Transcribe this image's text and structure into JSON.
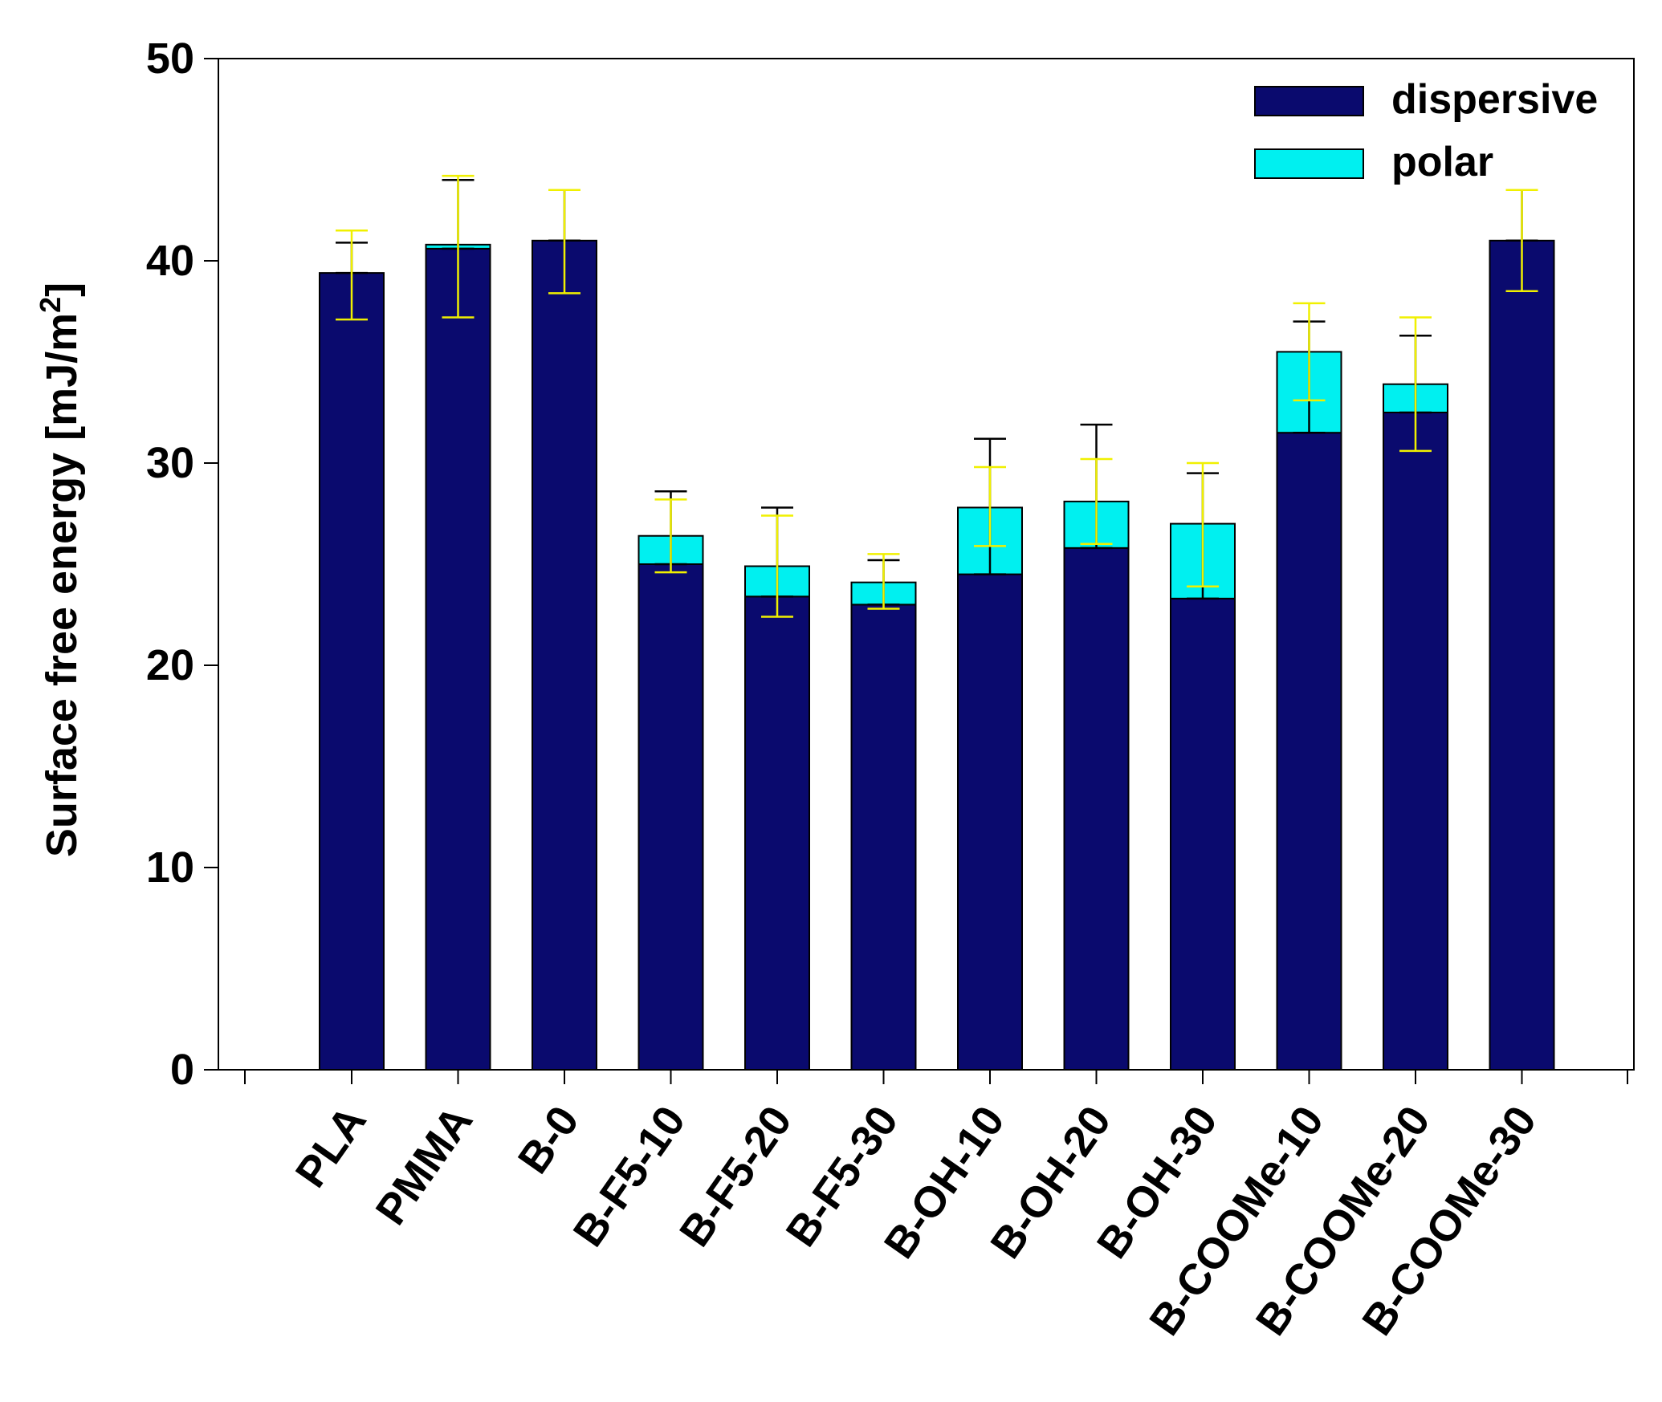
{
  "chart_data": {
    "type": "bar",
    "stacked": true,
    "title": "",
    "xlabel": "",
    "ylabel": "Surface free energy [mJ/m",
    "ylabel_superscript": "2",
    "ylabel_close": "]",
    "ylim": [
      0,
      50
    ],
    "yticks": [
      0,
      10,
      20,
      30,
      40,
      50
    ],
    "grid": false,
    "legend_position": "top-right",
    "categories": [
      "PLA",
      "PMMA",
      "B-0",
      "B-F5-10",
      "B-F5-20",
      "B-F5-30",
      "B-OH-10",
      "B-OH-20",
      "B-OH-30",
      "B-COOMe-10",
      "B-COOMe-20",
      "B-COOMe-30"
    ],
    "series": [
      {
        "name": "dispersive",
        "color": "#0a0a6e",
        "values": [
          39.4,
          40.6,
          41.0,
          25.0,
          23.4,
          23.0,
          24.5,
          25.8,
          23.3,
          31.5,
          32.5,
          41.0
        ],
        "error_color": "#000000",
        "errors": [
          1.5,
          3.4,
          2.5,
          3.6,
          4.4,
          2.2,
          6.7,
          6.1,
          6.2,
          5.5,
          3.8,
          2.5
        ]
      },
      {
        "name": "polar",
        "color": "#00f0f0",
        "values": [
          0.0,
          0.2,
          0.0,
          1.4,
          1.5,
          1.1,
          3.3,
          2.3,
          3.7,
          4.0,
          1.4,
          0.0
        ],
        "error_color": "#f0f000",
        "errors": [
          2.1,
          3.4,
          2.5,
          1.8,
          2.5,
          1.4,
          2.0,
          2.1,
          3.0,
          2.4,
          3.3,
          2.5
        ],
        "lower_errors": [
          2.3,
          3.6,
          2.6,
          1.8,
          2.5,
          1.3,
          1.9,
          2.1,
          3.1,
          2.4,
          3.3,
          2.5
        ]
      }
    ]
  }
}
